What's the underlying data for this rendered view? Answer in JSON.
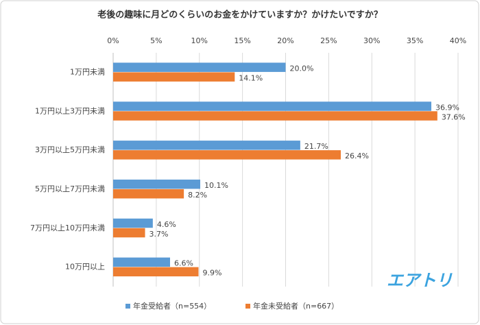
{
  "chart_data": {
    "type": "bar",
    "orientation": "horizontal",
    "title": "老後の趣味に月どのくらいのお金をかけていますか？かけたいですか？",
    "annotation": "エアトリ",
    "categories": [
      "1万円未満",
      "1万円以上3万円未満",
      "3万円以上5万円未満",
      "5万円以上7万円未満",
      "7万円以上10万円未満",
      "10万円以上"
    ],
    "series": [
      {
        "name": "年金受給者（n=554）",
        "color": "#5b9bd5",
        "values": [
          20.0,
          36.9,
          21.7,
          10.1,
          4.6,
          6.6
        ],
        "value_labels": [
          "20.0%",
          "36.9%",
          "21.7%",
          "10.1%",
          "4.6%",
          "6.6%"
        ]
      },
      {
        "name": "年金未受給者（n=667）",
        "color": "#ed7d31",
        "values": [
          14.1,
          37.6,
          26.4,
          8.2,
          3.7,
          9.9
        ],
        "value_labels": [
          "14.1%",
          "37.6%",
          "26.4%",
          "8.2%",
          "3.7%",
          "9.9%"
        ]
      }
    ],
    "xlim": [
      0,
      40
    ],
    "xticks": [
      {
        "value": 0,
        "label": "0%"
      },
      {
        "value": 5,
        "label": "5%"
      },
      {
        "value": 10,
        "label": "10%"
      },
      {
        "value": 15,
        "label": "15%"
      },
      {
        "value": 20,
        "label": "20%"
      },
      {
        "value": 25,
        "label": "25%"
      },
      {
        "value": 30,
        "label": "30%"
      },
      {
        "value": 35,
        "label": "35%"
      },
      {
        "value": 40,
        "label": "40%"
      }
    ],
    "grid": true,
    "legend": "bottom"
  }
}
